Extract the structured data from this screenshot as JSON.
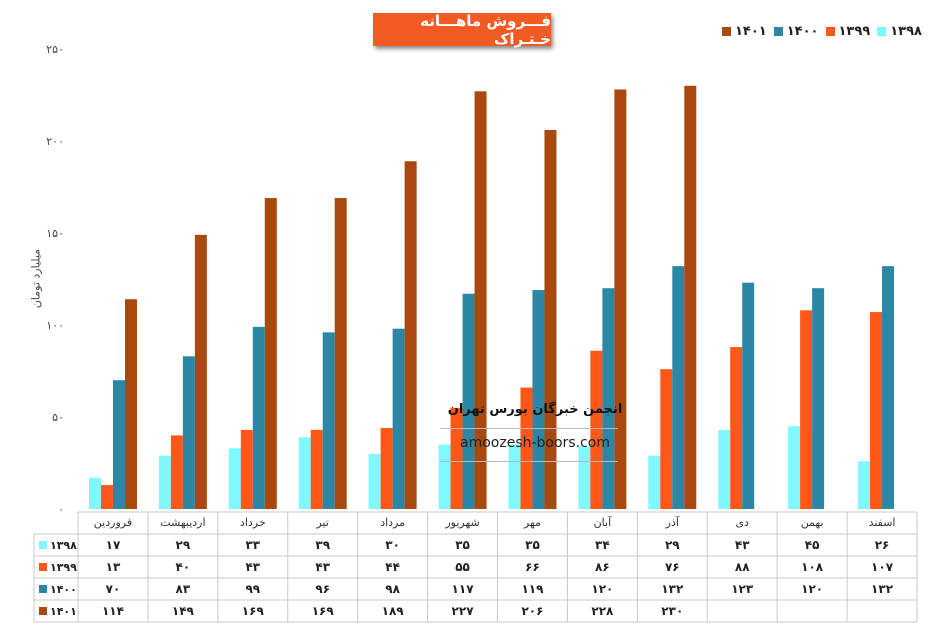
{
  "chart_data": {
    "type": "bar",
    "title": "فـــروش ماهـــانه خـتـراک",
    "ylabel": "میلیارد تومان",
    "xlabel": "",
    "ylim": [
      0,
      250
    ],
    "yticks": [
      "۰",
      "۵۰",
      "۱۰۰",
      "۱۵۰",
      "۲۰۰",
      "۲۵۰"
    ],
    "ytick_values": [
      0,
      50,
      100,
      150,
      200,
      250
    ],
    "grid": false,
    "legend_position": "top-right",
    "categories": [
      "فروردین",
      "اردیبهشت",
      "خرداد",
      "تیر",
      "مرداد",
      "شهریور",
      "مهر",
      "آبان",
      "آذر",
      "دی",
      "بهمن",
      "اسفند"
    ],
    "series": [
      {
        "name": "۱۳۹۸",
        "color": "#7ff8ff",
        "values": [
          17,
          29,
          33,
          39,
          30,
          35,
          35,
          34,
          29,
          43,
          45,
          26
        ],
        "labels": [
          "۱۷",
          "۲۹",
          "۳۳",
          "۳۹",
          "۳۰",
          "۳۵",
          "۳۵",
          "۳۴",
          "۲۹",
          "۴۳",
          "۴۵",
          "۲۶"
        ]
      },
      {
        "name": "۱۳۹۹",
        "color": "#ff5718",
        "values": [
          13,
          40,
          43,
          43,
          44,
          55,
          66,
          86,
          76,
          88,
          108,
          107
        ],
        "labels": [
          "۱۳",
          "۴۰",
          "۴۳",
          "۴۳",
          "۴۴",
          "۵۵",
          "۶۶",
          "۸۶",
          "۷۶",
          "۸۸",
          "۱۰۸",
          "۱۰۷"
        ]
      },
      {
        "name": "۱۴۰۰",
        "color": "#2b87a3",
        "values": [
          70,
          83,
          99,
          96,
          98,
          117,
          119,
          120,
          132,
          123,
          120,
          132
        ],
        "labels": [
          "۷۰",
          "۸۳",
          "۹۹",
          "۹۶",
          "۹۸",
          "۱۱۷",
          "۱۱۹",
          "۱۲۰",
          "۱۳۲",
          "۱۲۳",
          "۱۲۰",
          "۱۳۲"
        ]
      },
      {
        "name": "۱۴۰۱",
        "color": "#a9490f",
        "values": [
          114,
          149,
          169,
          169,
          189,
          227,
          206,
          228,
          230,
          null,
          null,
          null
        ],
        "labels": [
          "۱۱۴",
          "۱۴۹",
          "۱۶۹",
          "۱۶۹",
          "۱۸۹",
          "۲۲۷",
          "۲۰۶",
          "۲۲۸",
          "۲۳۰",
          "",
          "",
          ""
        ]
      }
    ]
  },
  "watermark": {
    "name": "انجمن خبرگان بورس تهران",
    "url": "amoozesh-boors.com"
  }
}
